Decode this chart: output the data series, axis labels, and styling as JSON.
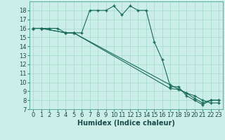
{
  "title": "",
  "xlabel": "Humidex (Indice chaleur)",
  "bg_color": "#cceee8",
  "grid_color": "#aaddcc",
  "line_color": "#1a6b5a",
  "xlim": [
    -0.5,
    23.5
  ],
  "ylim": [
    7,
    19
  ],
  "xticks": [
    0,
    1,
    2,
    3,
    4,
    5,
    6,
    7,
    8,
    9,
    10,
    11,
    12,
    13,
    14,
    15,
    16,
    17,
    18,
    19,
    20,
    21,
    22,
    23
  ],
  "yticks": [
    7,
    8,
    9,
    10,
    11,
    12,
    13,
    14,
    15,
    16,
    17,
    18
  ],
  "line1_x": [
    0,
    1,
    2,
    3,
    4,
    5,
    6,
    7,
    8,
    9,
    10,
    11,
    12,
    13,
    14,
    15,
    16,
    17,
    18,
    19,
    20,
    21,
    22,
    23
  ],
  "line1_y": [
    16,
    16,
    16,
    16,
    15.5,
    15.5,
    15.5,
    18,
    18,
    18,
    18.5,
    17.5,
    18.5,
    18,
    18,
    14.5,
    12.5,
    9.5,
    9.5,
    8.5,
    8,
    7.5,
    8,
    8
  ],
  "line2_x": [
    0,
    1,
    4,
    5,
    17,
    19,
    20,
    21,
    22,
    23
  ],
  "line2_y": [
    16,
    16,
    15.5,
    15.5,
    9.7,
    8.8,
    8.2,
    7.7,
    8.0,
    8.0
  ],
  "line3_x": [
    0,
    1,
    4,
    5,
    17,
    18,
    19,
    20,
    21,
    22,
    23
  ],
  "line3_y": [
    16,
    16,
    15.5,
    15.5,
    9.3,
    9.2,
    8.8,
    8.5,
    8.0,
    7.7,
    7.7
  ],
  "xlabel_fontsize": 7,
  "tick_fontsize": 6,
  "marker_size": 2.5
}
